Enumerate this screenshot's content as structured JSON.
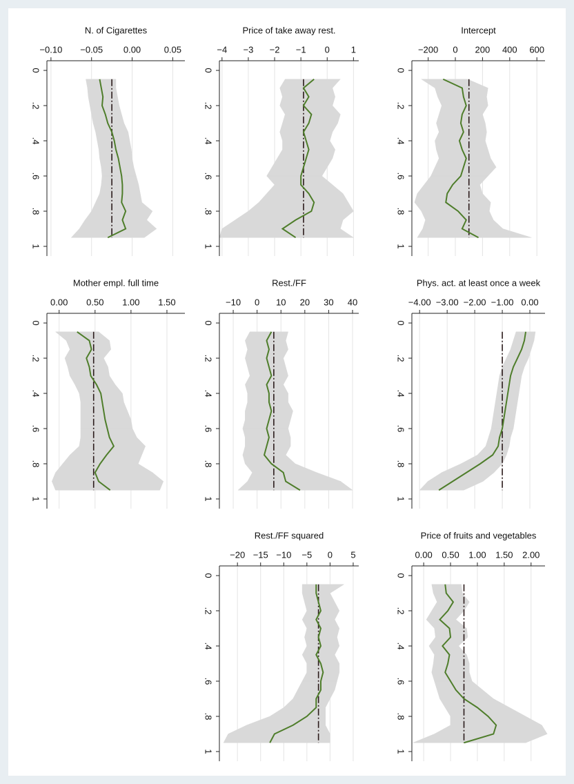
{
  "chart_data": [
    {
      "type": "quantile",
      "title": "N. of Cigarettes",
      "quantiles": [
        0.05,
        0.1,
        0.15,
        0.2,
        0.25,
        0.3,
        0.35,
        0.4,
        0.45,
        0.5,
        0.55,
        0.6,
        0.65,
        0.7,
        0.75,
        0.8,
        0.85,
        0.9,
        0.95
      ],
      "estimate": [
        -0.04,
        -0.038,
        -0.036,
        -0.037,
        -0.033,
        -0.03,
        -0.025,
        -0.022,
        -0.02,
        -0.017,
        -0.015,
        -0.013,
        -0.012,
        -0.012,
        -0.013,
        -0.008,
        -0.012,
        -0.008,
        -0.03
      ],
      "lower": [
        -0.057,
        -0.055,
        -0.054,
        -0.052,
        -0.05,
        -0.048,
        -0.045,
        -0.043,
        -0.041,
        -0.04,
        -0.038,
        -0.037,
        -0.038,
        -0.04,
        -0.045,
        -0.05,
        -0.058,
        -0.065,
        -0.075
      ],
      "upper": [
        -0.02,
        -0.02,
        -0.018,
        -0.016,
        -0.013,
        -0.01,
        -0.005,
        -0.003,
        -0.001,
        0.0,
        0.002,
        0.005,
        0.008,
        0.01,
        0.012,
        0.025,
        0.018,
        0.03,
        0.015
      ],
      "ols": -0.025,
      "xlim": [
        -0.105,
        0.065
      ],
      "xticks": [
        {
          "value": -0.1,
          "label": "−0.10"
        },
        {
          "value": -0.05,
          "label": "−0.05"
        },
        {
          "value": 0,
          "label": "0.00"
        },
        {
          "value": 0.05,
          "label": "0.05"
        }
      ],
      "ylim": [
        -0.055,
        1.055
      ],
      "yticks": [
        0,
        {
          "value": 0.2,
          "label": ".2"
        },
        {
          "value": 0.4,
          "label": ".4"
        },
        {
          "value": 0.6,
          "label": ".6"
        },
        {
          "value": 0.8,
          "label": ".8"
        },
        1
      ],
      "color": "#4e7d2a",
      "band_color": "#d9d9d9",
      "ols_color": "#2a1a1a",
      "grid": true
    },
    {
      "type": "quantile",
      "title": "Price of take away rest.",
      "quantiles": [
        0.05,
        0.1,
        0.15,
        0.2,
        0.25,
        0.3,
        0.35,
        0.4,
        0.45,
        0.5,
        0.55,
        0.6,
        0.65,
        0.7,
        0.75,
        0.8,
        0.85,
        0.9,
        0.95
      ],
      "estimate": [
        -0.5,
        -0.9,
        -0.7,
        -0.9,
        -0.6,
        -0.7,
        -0.9,
        -0.8,
        -0.7,
        -0.8,
        -0.9,
        -1.0,
        -1.0,
        -0.7,
        -0.5,
        -0.6,
        -1.2,
        -1.7,
        -1.2
      ],
      "lower": [
        -1.6,
        -1.8,
        -1.7,
        -1.8,
        -1.6,
        -1.7,
        -1.8,
        -1.7,
        -1.7,
        -1.9,
        -2.1,
        -2.3,
        -2.0,
        -2.3,
        -2.6,
        -3.0,
        -3.5,
        -4.0,
        -4.1
      ],
      "upper": [
        0.5,
        0.2,
        0.3,
        0.2,
        0.5,
        0.4,
        0.2,
        0.1,
        0.3,
        0.2,
        0.0,
        -0.2,
        0.2,
        0.6,
        0.8,
        1.0,
        0.6,
        0.5,
        1.0
      ],
      "ols": -0.9,
      "xlim": [
        -4.1,
        1.2
      ],
      "xticks": [
        {
          "value": -4,
          "label": "−4"
        },
        {
          "value": -3,
          "label": "−3"
        },
        {
          "value": -2,
          "label": "−2"
        },
        {
          "value": -1,
          "label": "−1"
        },
        0,
        1
      ],
      "ylim": [
        -0.055,
        1.055
      ],
      "yticks": [
        0,
        {
          "value": 0.2,
          "label": ".2"
        },
        {
          "value": 0.4,
          "label": ".4"
        },
        {
          "value": 0.6,
          "label": ".6"
        },
        {
          "value": 0.8,
          "label": ".8"
        },
        1
      ],
      "color": "#4e7d2a",
      "band_color": "#d9d9d9",
      "ols_color": "#2a1a1a",
      "grid": true
    },
    {
      "type": "quantile",
      "title": "Intercept",
      "quantiles": [
        0.05,
        0.1,
        0.15,
        0.2,
        0.25,
        0.3,
        0.35,
        0.4,
        0.45,
        0.5,
        0.55,
        0.6,
        0.65,
        0.7,
        0.75,
        0.8,
        0.85,
        0.9,
        0.95
      ],
      "estimate": [
        -90,
        50,
        60,
        80,
        50,
        40,
        60,
        30,
        50,
        80,
        60,
        40,
        -20,
        -60,
        -70,
        20,
        80,
        50,
        170
      ],
      "lower": [
        -250,
        -150,
        -130,
        -100,
        -120,
        -140,
        -120,
        -150,
        -140,
        -120,
        -150,
        -180,
        -230,
        -280,
        -300,
        -250,
        -220,
        -240,
        -280
      ],
      "upper": [
        90,
        240,
        230,
        240,
        200,
        220,
        230,
        220,
        240,
        260,
        300,
        240,
        180,
        200,
        260,
        250,
        280,
        350,
        560
      ],
      "ols": 100,
      "xlim": [
        -320,
        660
      ],
      "xticks": [
        {
          "value": -200,
          "label": "−200"
        },
        0,
        200,
        400,
        600
      ],
      "ylim": [
        -0.055,
        1.055
      ],
      "yticks": [
        0,
        {
          "value": 0.2,
          "label": ".2"
        },
        {
          "value": 0.4,
          "label": ".4"
        },
        {
          "value": 0.6,
          "label": ".6"
        },
        {
          "value": 0.8,
          "label": ".8"
        },
        1
      ],
      "color": "#4e7d2a",
      "band_color": "#d9d9d9",
      "ols_color": "#2a1a1a",
      "grid": true
    },
    {
      "type": "quantile",
      "title": "Mother empl. full time",
      "quantiles": [
        0.05,
        0.1,
        0.15,
        0.2,
        0.25,
        0.3,
        0.35,
        0.4,
        0.45,
        0.5,
        0.55,
        0.6,
        0.65,
        0.7,
        0.75,
        0.8,
        0.85,
        0.9,
        0.95
      ],
      "estimate": [
        0.25,
        0.42,
        0.45,
        0.38,
        0.42,
        0.44,
        0.52,
        0.58,
        0.6,
        0.62,
        0.64,
        0.67,
        0.7,
        0.76,
        0.66,
        0.57,
        0.5,
        0.55,
        0.71
      ],
      "lower": [
        -0.05,
        0.1,
        0.15,
        0.08,
        0.12,
        0.15,
        0.22,
        0.28,
        0.3,
        0.3,
        0.3,
        0.3,
        0.3,
        0.28,
        0.15,
        0.05,
        -0.05,
        -0.1,
        -0.05
      ],
      "upper": [
        0.55,
        0.7,
        0.72,
        0.62,
        0.68,
        0.7,
        0.78,
        0.88,
        0.9,
        0.95,
        1.0,
        1.02,
        1.08,
        1.2,
        1.15,
        1.1,
        1.3,
        1.45,
        1.4
      ],
      "ols": 0.48,
      "xlim": [
        -0.17,
        1.75
      ],
      "xticks": [
        {
          "value": 0,
          "label": "0.00"
        },
        {
          "value": 0.5,
          "label": "0.50"
        },
        {
          "value": 1,
          "label": "1.00"
        },
        {
          "value": 1.5,
          "label": "1.50"
        }
      ],
      "ylim": [
        -0.055,
        1.055
      ],
      "yticks": [
        0,
        {
          "value": 0.2,
          "label": ".2"
        },
        {
          "value": 0.4,
          "label": ".4"
        },
        {
          "value": 0.6,
          "label": ".6"
        },
        {
          "value": 0.8,
          "label": ".8"
        },
        1
      ],
      "color": "#4e7d2a",
      "band_color": "#d9d9d9",
      "ols_color": "#2a1a1a",
      "grid": true
    },
    {
      "type": "quantile",
      "title": "Rest./FF",
      "quantiles": [
        0.05,
        0.1,
        0.15,
        0.2,
        0.25,
        0.3,
        0.35,
        0.4,
        0.45,
        0.5,
        0.55,
        0.6,
        0.65,
        0.7,
        0.75,
        0.8,
        0.85,
        0.9,
        0.95
      ],
      "estimate": [
        6,
        4,
        5,
        4,
        5,
        6,
        4,
        5,
        5,
        6,
        5,
        4,
        5,
        4,
        3,
        6,
        11,
        12,
        18
      ],
      "lower": [
        -3,
        -5,
        -4,
        -5,
        -4,
        -3,
        -5,
        -4,
        -4,
        -5,
        -5,
        -6,
        -5,
        -5,
        -6,
        -5,
        -2,
        -4,
        -8
      ],
      "upper": [
        13,
        12,
        13,
        11,
        12,
        13,
        11,
        13,
        13,
        15,
        14,
        13,
        14,
        14,
        12,
        16,
        25,
        35,
        40
      ],
      "ols": 7,
      "xlim": [
        -15.8,
        42.6
      ],
      "xticks": [
        {
          "value": -10,
          "label": "−10"
        },
        0,
        10,
        20,
        30,
        40
      ],
      "ylim": [
        -0.055,
        1.055
      ],
      "yticks": [
        0,
        {
          "value": 0.2,
          "label": ".2"
        },
        {
          "value": 0.4,
          "label": ".4"
        },
        {
          "value": 0.6,
          "label": ".6"
        },
        {
          "value": 0.8,
          "label": ".8"
        },
        1
      ],
      "color": "#4e7d2a",
      "band_color": "#d9d9d9",
      "ols_color": "#2a1a1a",
      "grid": true
    },
    {
      "type": "quantile",
      "title": "Phys. act. at least once a week",
      "quantiles": [
        0.05,
        0.1,
        0.15,
        0.2,
        0.25,
        0.3,
        0.35,
        0.4,
        0.45,
        0.5,
        0.55,
        0.6,
        0.65,
        0.7,
        0.75,
        0.8,
        0.85,
        0.9,
        0.95
      ],
      "estimate": [
        -0.15,
        -0.2,
        -0.3,
        -0.45,
        -0.6,
        -0.7,
        -0.75,
        -0.8,
        -0.85,
        -0.9,
        -0.95,
        -1.0,
        -1.1,
        -1.15,
        -1.35,
        -1.8,
        -2.3,
        -2.8,
        -3.3
      ],
      "lower": [
        -0.5,
        -0.6,
        -0.7,
        -0.85,
        -1.0,
        -1.1,
        -1.15,
        -1.2,
        -1.25,
        -1.3,
        -1.35,
        -1.4,
        -1.5,
        -1.6,
        -1.9,
        -2.5,
        -3.2,
        -3.7,
        -4.0
      ],
      "upper": [
        0.2,
        0.15,
        0.05,
        -0.05,
        -0.2,
        -0.3,
        -0.35,
        -0.4,
        -0.45,
        -0.5,
        -0.55,
        -0.6,
        -0.7,
        -0.75,
        -0.85,
        -1.0,
        -1.3,
        -1.7,
        -2.4
      ],
      "ols": -1.0,
      "xlim": [
        -4.28,
        0.55
      ],
      "xticks": [
        {
          "value": -4,
          "label": "−4.00"
        },
        {
          "value": -3,
          "label": "−3.00"
        },
        {
          "value": -2,
          "label": "−2.00"
        },
        {
          "value": -1,
          "label": "−1.00"
        },
        {
          "value": 0,
          "label": "0.00"
        }
      ],
      "ylim": [
        -0.055,
        1.055
      ],
      "yticks": [
        0,
        {
          "value": 0.2,
          "label": ".2"
        },
        {
          "value": 0.4,
          "label": ".4"
        },
        {
          "value": 0.6,
          "label": ".6"
        },
        {
          "value": 0.8,
          "label": ".8"
        },
        1
      ],
      "color": "#4e7d2a",
      "band_color": "#d9d9d9",
      "ols_color": "#2a1a1a",
      "grid": true
    },
    {
      "type": "quantile",
      "title": "Rest./FF squared",
      "quantiles": [
        0.05,
        0.1,
        0.15,
        0.2,
        0.25,
        0.3,
        0.35,
        0.4,
        0.45,
        0.5,
        0.55,
        0.6,
        0.65,
        0.7,
        0.75,
        0.8,
        0.85,
        0.9,
        0.95
      ],
      "estimate": [
        -3,
        -3,
        -2.5,
        -2,
        -3,
        -2,
        -2.5,
        -2,
        -3,
        -2,
        -1.5,
        -2,
        -2,
        -3,
        -3,
        -5,
        -8,
        -12,
        -13
      ],
      "lower": [
        -6,
        -6,
        -5.5,
        -5,
        -6,
        -5,
        -5.5,
        -5,
        -6,
        -5,
        -5,
        -6,
        -7,
        -8,
        -10,
        -13,
        -18,
        -22,
        -23
      ],
      "upper": [
        3,
        0,
        1,
        2,
        1,
        2,
        1.5,
        2,
        1,
        2,
        2,
        1.5,
        1,
        0,
        -1,
        -1,
        -1,
        0,
        0
      ],
      "ols": -2.5,
      "xlim": [
        -23.9,
        6.2
      ],
      "xticks": [
        {
          "value": -20,
          "label": "−20"
        },
        {
          "value": -15,
          "label": "−15"
        },
        {
          "value": -10,
          "label": "−10"
        },
        {
          "value": -5,
          "label": "−5"
        },
        0,
        5
      ],
      "ylim": [
        -0.055,
        1.055
      ],
      "yticks": [
        0,
        {
          "value": 0.2,
          "label": ".2"
        },
        {
          "value": 0.4,
          "label": ".4"
        },
        {
          "value": 0.6,
          "label": ".6"
        },
        {
          "value": 0.8,
          "label": ".8"
        },
        1
      ],
      "color": "#4e7d2a",
      "band_color": "#d9d9d9",
      "ols_color": "#2a1a1a",
      "grid": true
    },
    {
      "type": "quantile",
      "title": "Price of fruits and vegetables",
      "quantiles": [
        0.05,
        0.1,
        0.15,
        0.2,
        0.25,
        0.3,
        0.35,
        0.4,
        0.45,
        0.5,
        0.55,
        0.6,
        0.65,
        0.7,
        0.75,
        0.8,
        0.85,
        0.9,
        0.95
      ],
      "estimate": [
        0.4,
        0.42,
        0.55,
        0.45,
        0.3,
        0.48,
        0.5,
        0.35,
        0.48,
        0.45,
        0.4,
        0.5,
        0.6,
        0.75,
        1.0,
        1.2,
        1.35,
        1.3,
        0.75
      ],
      "lower": [
        0.15,
        0.18,
        0.25,
        0.15,
        0.05,
        0.2,
        0.22,
        0.1,
        0.2,
        0.18,
        0.15,
        0.2,
        0.25,
        0.3,
        0.4,
        0.5,
        0.5,
        0.2,
        -0.2
      ],
      "upper": [
        0.7,
        0.72,
        0.85,
        0.75,
        0.6,
        0.8,
        0.82,
        0.65,
        0.8,
        0.85,
        0.85,
        0.9,
        1.1,
        1.3,
        1.6,
        1.9,
        2.2,
        2.3,
        1.9
      ],
      "ols": 0.75,
      "xlim": [
        -0.22,
        2.26
      ],
      "xticks": [
        {
          "value": 0,
          "label": "0.00"
        },
        {
          "value": 0.5,
          "label": "0.50"
        },
        {
          "value": 1,
          "label": "1.00"
        },
        {
          "value": 1.5,
          "label": "1.50"
        },
        {
          "value": 2,
          "label": "2.00"
        }
      ],
      "ylim": [
        -0.055,
        1.055
      ],
      "yticks": [
        0,
        {
          "value": 0.2,
          "label": ".2"
        },
        {
          "value": 0.4,
          "label": ".4"
        },
        {
          "value": 0.6,
          "label": ".6"
        },
        {
          "value": 0.8,
          "label": ".8"
        },
        1
      ],
      "color": "#4e7d2a",
      "band_color": "#d9d9d9",
      "ols_color": "#2a1a1a",
      "grid": true
    }
  ]
}
